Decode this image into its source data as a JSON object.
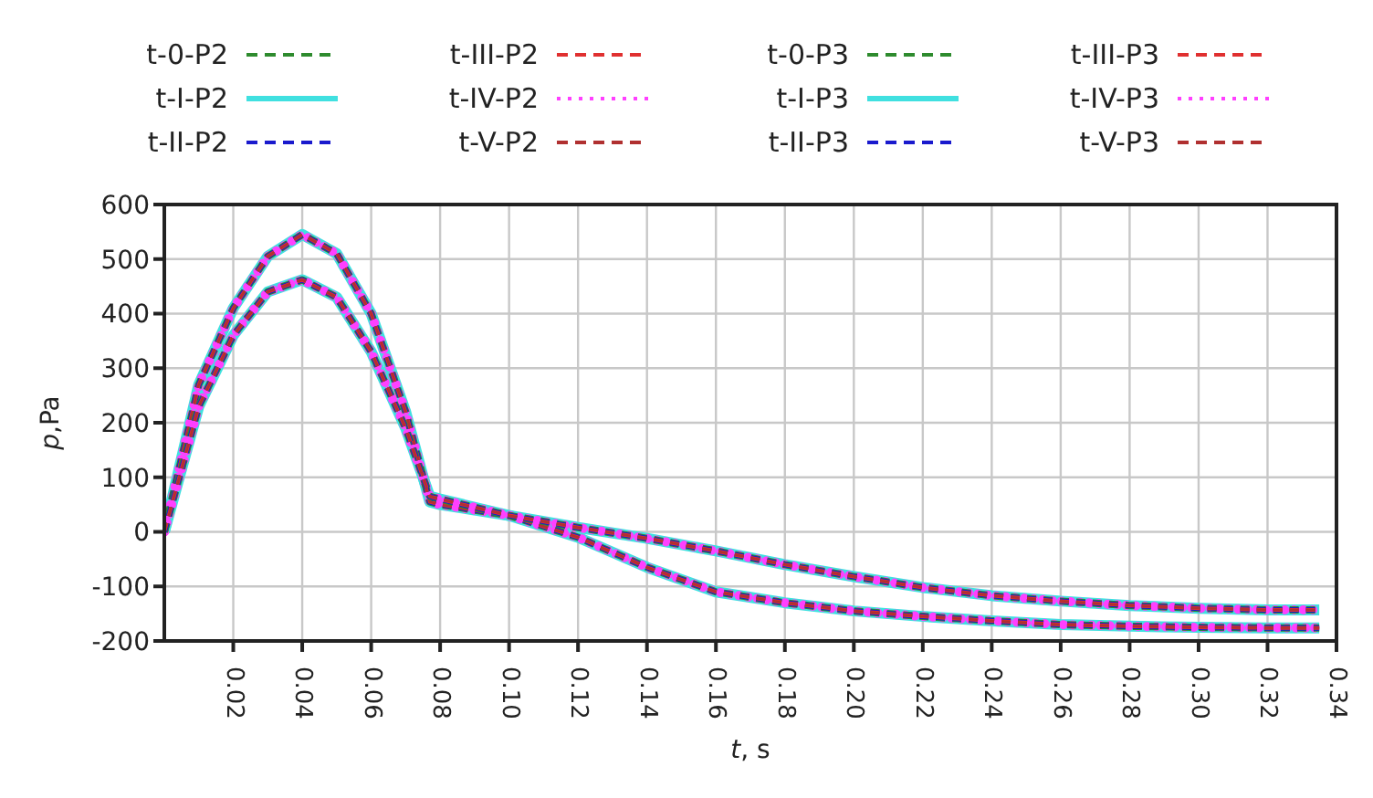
{
  "chart_data": {
    "type": "line",
    "xlabel": "t, s",
    "ylabel": "p,Pa",
    "xlim": [
      0,
      0.34
    ],
    "ylim": [
      -200,
      600
    ],
    "xticks": [
      0.02,
      0.04,
      0.06,
      0.08,
      {
        "value": 0.1,
        "label": "0.10"
      },
      0.12,
      0.14,
      0.16,
      0.18,
      {
        "value": 0.2,
        "label": "0.20"
      },
      0.22,
      0.24,
      0.26,
      0.28,
      {
        "value": 0.3,
        "label": "0.30"
      },
      0.32,
      0.34
    ],
    "yticks": [
      -200,
      -100,
      0,
      100,
      200,
      300,
      400,
      500,
      600
    ],
    "grid": true,
    "legend": "top",
    "marker": "none",
    "x": [
      0,
      0.01,
      0.02,
      0.03,
      0.04,
      0.05,
      0.06,
      0.07,
      0.077,
      0.08,
      0.1,
      0.12,
      0.14,
      0.16,
      0.18,
      0.2,
      0.22,
      0.24,
      0.26,
      0.28,
      0.3,
      0.32,
      0.335
    ],
    "series": [
      {
        "name": "t-0-P2",
        "color": "#2e8b2e",
        "line_style": "dashed",
        "values": [
          0,
          270,
          410,
          505,
          545,
          510,
          400,
          220,
          55,
          50,
          30,
          -10,
          -65,
          -110,
          -130,
          -145,
          -155,
          -163,
          -170,
          -173,
          -175,
          -176,
          -176
        ]
      },
      {
        "name": "t-I-P2",
        "color": "#40e0e0",
        "line_style": "solid",
        "values": [
          0,
          270,
          410,
          505,
          545,
          510,
          400,
          220,
          55,
          50,
          30,
          -10,
          -65,
          -110,
          -130,
          -145,
          -155,
          -163,
          -170,
          -173,
          -175,
          -176,
          -176
        ]
      },
      {
        "name": "t-II-P2",
        "color": "#1a1acd",
        "line_style": "dashed",
        "values": [
          0,
          270,
          410,
          505,
          545,
          510,
          400,
          220,
          55,
          50,
          30,
          -10,
          -65,
          -110,
          -130,
          -145,
          -155,
          -163,
          -170,
          -173,
          -175,
          -176,
          -176
        ]
      },
      {
        "name": "t-III-P2",
        "color": "#e03030",
        "line_style": "dashed",
        "values": [
          0,
          270,
          410,
          505,
          545,
          510,
          400,
          220,
          55,
          50,
          30,
          -10,
          -65,
          -110,
          -130,
          -145,
          -155,
          -163,
          -170,
          -173,
          -175,
          -176,
          -176
        ]
      },
      {
        "name": "t-IV-P2",
        "color": "#ff40ff",
        "line_style": "dotted",
        "values": [
          0,
          270,
          410,
          505,
          545,
          510,
          400,
          220,
          55,
          50,
          30,
          -10,
          -65,
          -110,
          -130,
          -145,
          -155,
          -163,
          -170,
          -173,
          -175,
          -176,
          -176
        ]
      },
      {
        "name": "t-V-P2",
        "color": "#b03030",
        "line_style": "dashed",
        "values": [
          0,
          270,
          410,
          505,
          545,
          510,
          400,
          220,
          55,
          50,
          30,
          -10,
          -65,
          -110,
          -130,
          -145,
          -155,
          -163,
          -170,
          -173,
          -175,
          -176,
          -176
        ]
      },
      {
        "name": "t-0-P3",
        "color": "#2e8b2e",
        "line_style": "dashed",
        "values": [
          0,
          230,
          360,
          440,
          462,
          430,
          330,
          190,
          65,
          60,
          30,
          8,
          -12,
          -35,
          -60,
          -82,
          -102,
          -117,
          -127,
          -135,
          -140,
          -143,
          -143
        ]
      },
      {
        "name": "t-I-P3",
        "color": "#40e0e0",
        "line_style": "solid",
        "values": [
          0,
          230,
          360,
          440,
          462,
          430,
          330,
          190,
          65,
          60,
          30,
          8,
          -12,
          -35,
          -60,
          -82,
          -102,
          -117,
          -127,
          -135,
          -140,
          -143,
          -143
        ]
      },
      {
        "name": "t-II-P3",
        "color": "#1a1acd",
        "line_style": "dashed",
        "values": [
          0,
          230,
          360,
          440,
          462,
          430,
          330,
          190,
          65,
          60,
          30,
          8,
          -12,
          -35,
          -60,
          -82,
          -102,
          -117,
          -127,
          -135,
          -140,
          -143,
          -143
        ]
      },
      {
        "name": "t-III-P3",
        "color": "#e03030",
        "line_style": "dashed",
        "values": [
          0,
          230,
          360,
          440,
          462,
          430,
          330,
          190,
          65,
          60,
          30,
          8,
          -12,
          -35,
          -60,
          -82,
          -102,
          -117,
          -127,
          -135,
          -140,
          -143,
          -143
        ]
      },
      {
        "name": "t-IV-P3",
        "color": "#ff40ff",
        "line_style": "dotted",
        "values": [
          0,
          230,
          360,
          440,
          462,
          430,
          330,
          190,
          65,
          60,
          30,
          8,
          -12,
          -35,
          -60,
          -82,
          -102,
          -117,
          -127,
          -135,
          -140,
          -143,
          -143
        ]
      },
      {
        "name": "t-V-P3",
        "color": "#b03030",
        "line_style": "dashed",
        "values": [
          0,
          230,
          360,
          440,
          462,
          430,
          330,
          190,
          65,
          60,
          30,
          8,
          -12,
          -35,
          -60,
          -82,
          -102,
          -117,
          -127,
          -135,
          -140,
          -143,
          -143
        ]
      }
    ]
  }
}
